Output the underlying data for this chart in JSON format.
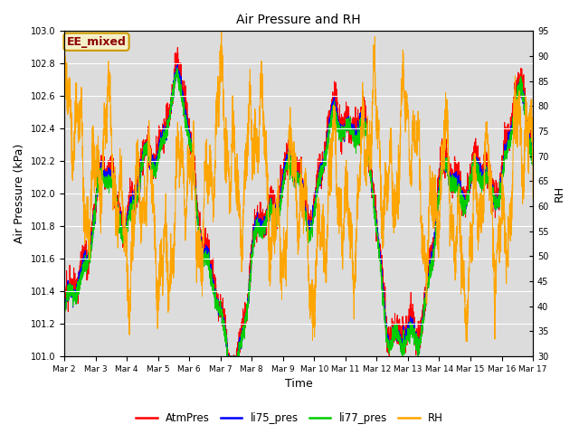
{
  "title": "Air Pressure and RH",
  "xlabel": "Time",
  "ylabel_left": "Air Pressure (kPa)",
  "ylabel_right": "RH",
  "annotation": "EE_mixed",
  "ylim_left": [
    101.0,
    103.0
  ],
  "ylim_right": [
    30,
    95
  ],
  "yticks_left": [
    101.0,
    101.2,
    101.4,
    101.6,
    101.8,
    102.0,
    102.2,
    102.4,
    102.6,
    102.8,
    103.0
  ],
  "yticks_right": [
    30,
    35,
    40,
    45,
    50,
    55,
    60,
    65,
    70,
    75,
    80,
    85,
    90,
    95
  ],
  "colors": {
    "AtmPres": "#ff0000",
    "li75_pres": "#0000ff",
    "li77_pres": "#00cc00",
    "RH": "#ffa500",
    "background": "#dcdcdc",
    "annotation_bg": "#f5f0c8",
    "annotation_border": "#cc9900"
  },
  "legend_labels": [
    "AtmPres",
    "li75_pres",
    "li77_pres",
    "RH"
  ],
  "x_tick_labels": [
    "Mar 2",
    "Mar 3",
    "Mar 4",
    "Mar 5",
    "Mar 6",
    "Mar 7",
    "Mar 8",
    "Mar 9",
    "Mar 10",
    "Mar 11",
    "Mar 12",
    "Mar 13",
    "Mar 14",
    "Mar 15",
    "Mar 16",
    "Mar 17"
  ],
  "n_points": 4000,
  "seed": 42
}
